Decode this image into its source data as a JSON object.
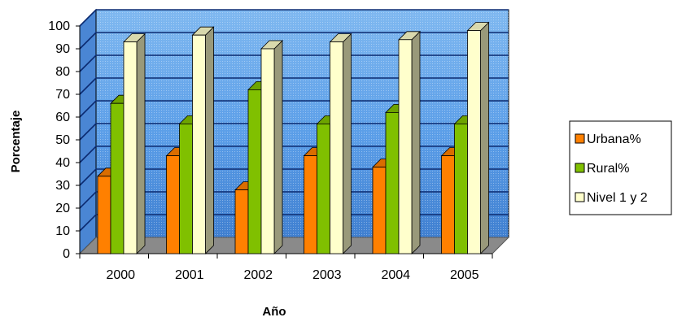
{
  "chart_data": {
    "type": "bar",
    "style": "3d-clustered-column",
    "categories": [
      "2000",
      "2001",
      "2002",
      "2003",
      "2004",
      "2005"
    ],
    "series": [
      {
        "name": "Urbana%",
        "values": [
          34,
          43,
          28,
          43,
          38,
          43
        ],
        "color": "#ff8000"
      },
      {
        "name": "Rural%",
        "values": [
          66,
          57,
          72,
          57,
          62,
          57
        ],
        "color": "#80c000"
      },
      {
        "name": "Nivel 1 y 2",
        "values": [
          93,
          96,
          90,
          93,
          94,
          98
        ],
        "color": "#ffffcc"
      }
    ],
    "xlabel": "Año",
    "ylabel": "Porcentaje",
    "ylim": [
      0,
      100
    ],
    "yticks": [
      "0",
      "10",
      "20",
      "30",
      "40",
      "50",
      "60",
      "70",
      "80",
      "90",
      "100"
    ],
    "grid": true,
    "legend": "right",
    "colors": {
      "back_wall": "#5fa0e6",
      "floor": "#8a8a8a",
      "gridline": "#0b2a70",
      "edge": "#000000"
    }
  }
}
